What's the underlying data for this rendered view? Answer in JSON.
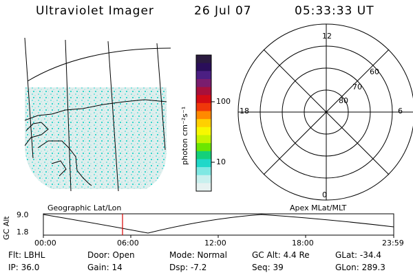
{
  "header": {
    "instrument": "Ultraviolet Imager",
    "date": "26 Jul 07",
    "time": "05:33:33 UT"
  },
  "colorbar": {
    "units_label": "photon cm⁻²s⁻¹",
    "ticks": [
      "100",
      "10"
    ],
    "colors": [
      "#2b1b40",
      "#2a0e5a",
      "#4b1f83",
      "#7a1d6e",
      "#a8103b",
      "#d40c14",
      "#f0370a",
      "#ff8a00",
      "#ffd000",
      "#f7f800",
      "#c6f400",
      "#6ce600",
      "#14d07a",
      "#20d8c9",
      "#7fe8e3",
      "#c8f0ee",
      "#e6f2f1"
    ]
  },
  "polar_plot": {
    "hour_labels": [
      "12",
      "18",
      "6",
      "0"
    ],
    "lat_labels": [
      "60",
      "70",
      "80"
    ]
  },
  "timeline": {
    "ylabel": "GC Alt",
    "y_ticks": [
      "9.0",
      "1.8"
    ],
    "left_title": "Geographic Lat/Lon",
    "right_title": "Apex MLat/MLT",
    "x_ticks": [
      "00:00",
      "06:00",
      "12:00",
      "18:00",
      "23:59"
    ],
    "marker_color": "#d40000"
  },
  "footer": {
    "filter": "Flt: LBHL",
    "ip": "IP: 36.0",
    "door": "Door: Open",
    "gain": "Gain: 14",
    "mode": "Mode: Normal",
    "dsp": "Dsp:    -7.2",
    "gc_alt": "GC Alt: 4.4 Re",
    "seq": "Seq: 39",
    "glat": "GLat: -34.4",
    "glon": "GLon: 289.3"
  }
}
